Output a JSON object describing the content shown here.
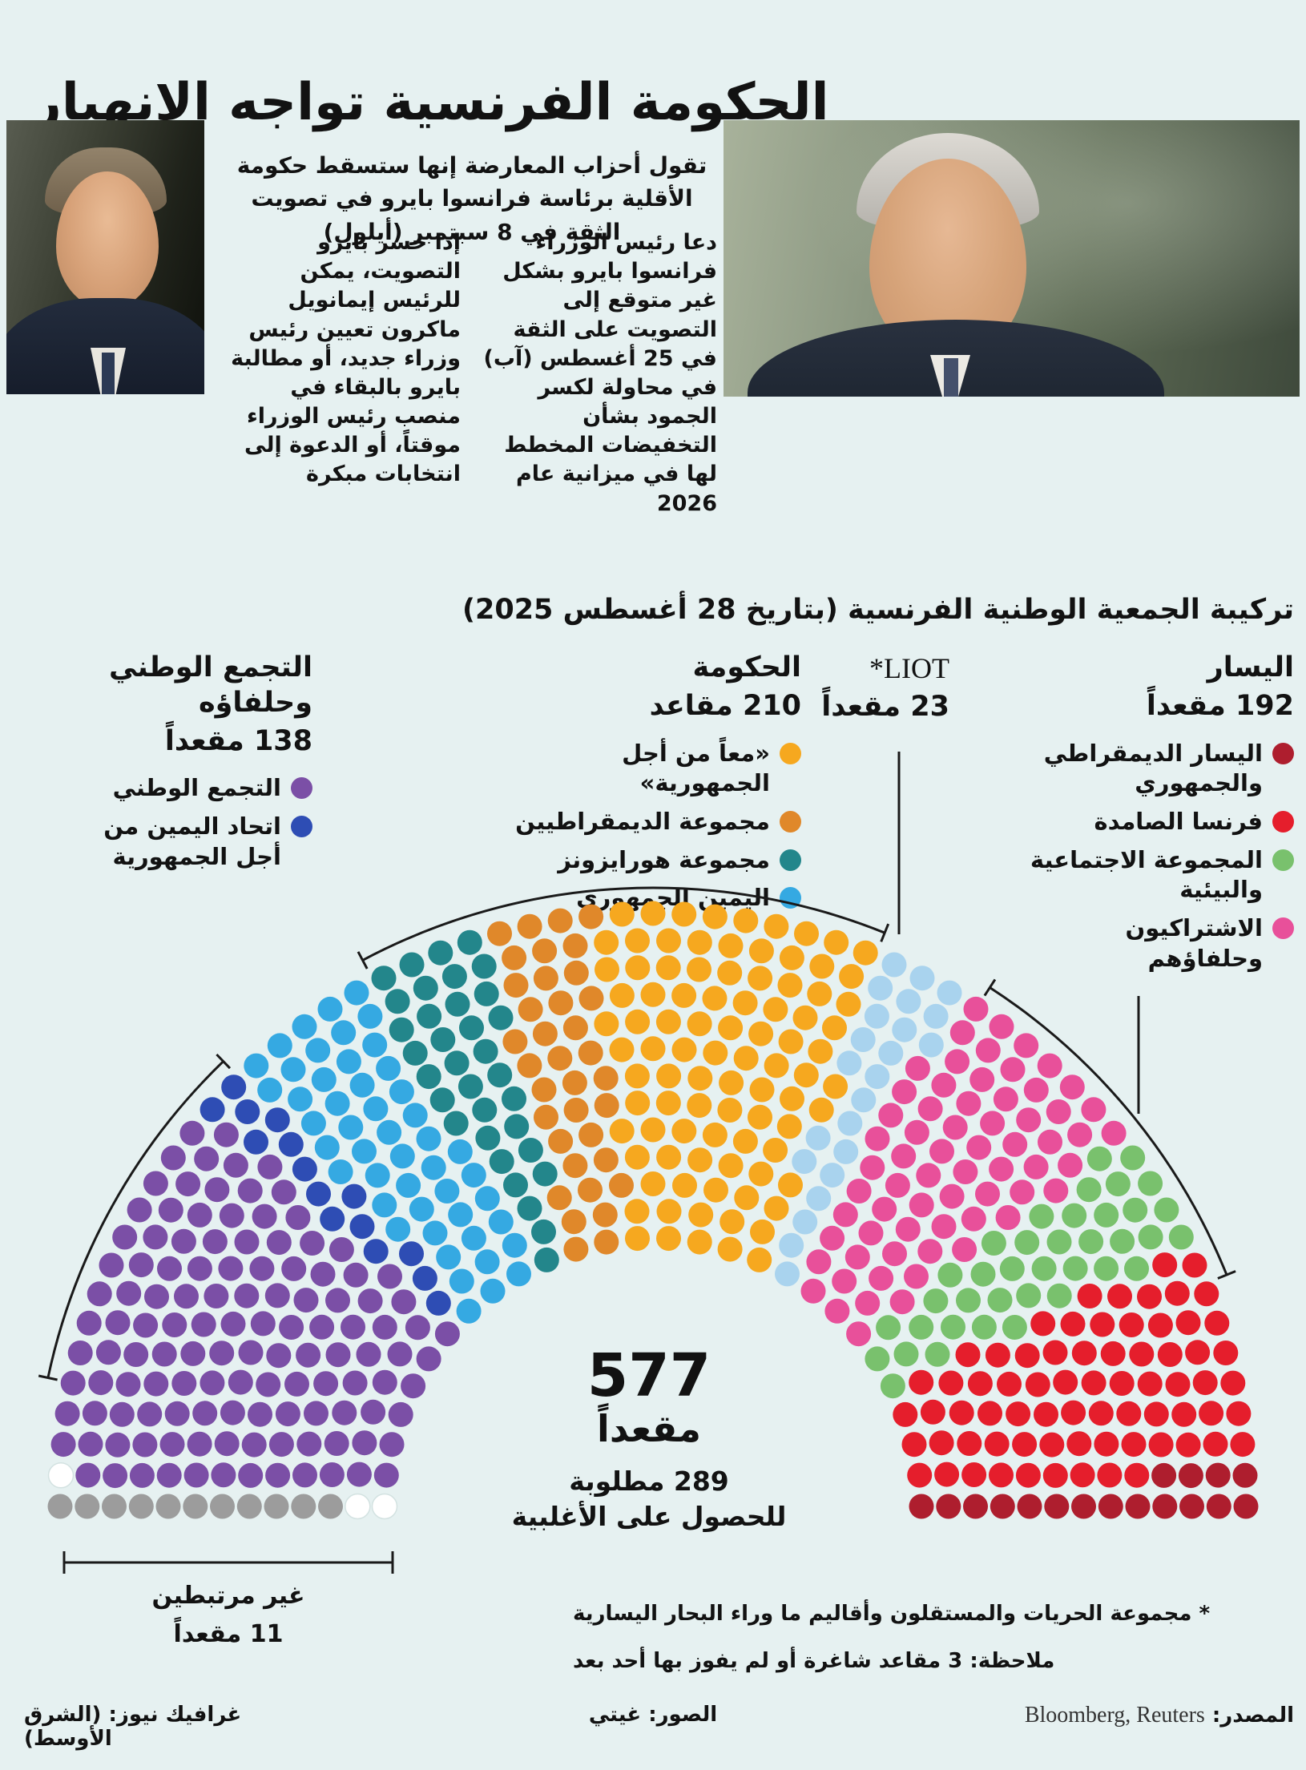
{
  "colors": {
    "background": "#e6f1f1",
    "text": "#121212",
    "line": "#1a1a1a"
  },
  "title": "الحكومة الفرنسية تواجه الانهيار",
  "intro": "تقول أحزاب المعارضة إنها ستسقط حكومة الأقلية برئاسة فرانسوا بايرو في تصويت الثقة في 8 سبتمبر (أيلول)",
  "paragraphs": {
    "bayrou_call": "دعا رئيس الوزراء فرانسوا بايرو بشكل غير متوقع إلى التصويت على الثقة في 25 أغسطس (آب) في محاولة لكسر الجمود بشأن التخفيضات المخطط لها في ميزانية عام 2026",
    "if_lose": "إذا خسر بايرو التصويت، يمكن للرئيس إيمانويل ماكرون تعيين رئيس وزراء جديد، أو مطالبة بايرو بالبقاء في منصب رئيس الوزراء موقتاً، أو الدعوة إلى انتخابات مبكرة"
  },
  "section_title": "تركيبة الجمعية الوطنية الفرنسية (بتاريخ 28 أغسطس 2025)",
  "legend": {
    "left_bloc": {
      "title": "اليسار",
      "count": "192 مقعداً",
      "items": [
        {
          "label": "اليسار الديمقراطي والجمهوري",
          "color": "#ae1e2e"
        },
        {
          "label": "فرنسا الصامدة",
          "color": "#e51e2c"
        },
        {
          "label": "المجموعة الاجتماعية والبيئية",
          "color": "#79c16d"
        },
        {
          "label": "الاشتراكيون وحلفاؤهم",
          "color": "#e8509a"
        }
      ]
    },
    "liot": {
      "title": "*LIOT",
      "count": "23 مقعداً"
    },
    "government": {
      "title": "الحكومة",
      "count": "210 مقاعد",
      "items": [
        {
          "label": "«معاً من أجل الجمهورية»",
          "color": "#f6a81f"
        },
        {
          "label": "مجموعة الديمقراطيين",
          "color": "#e0882a"
        },
        {
          "label": "مجموعة هورايزونز",
          "color": "#23868b"
        },
        {
          "label": "اليمين الجمهوري",
          "color": "#35a9e2"
        }
      ]
    },
    "rn_bloc": {
      "title": "التجمع الوطني وحلفاؤه",
      "count": "138 مقعداً",
      "items": [
        {
          "label": "التجمع الوطني",
          "color": "#7b4fa6"
        },
        {
          "label": "اتحاد اليمين من أجل الجمهورية",
          "color": "#2e4db4"
        }
      ]
    }
  },
  "center": {
    "total": "577",
    "unit": "مقعداً",
    "majority_line1": "289 مطلوبة",
    "majority_line2": "للحصول على الأغلبية"
  },
  "non_attached": {
    "line1": "غير مرتبطين",
    "line2": "11 مقعداً"
  },
  "footnotes": {
    "liot_note": "* مجموعة الحريات والمستقلون وأقاليم ما وراء البحار اليسارية",
    "vacant_note": "ملاحظة: 3 مقاعد شاغرة أو لم يفوز بها أحد بعد"
  },
  "footer": {
    "credit": "غرافيك نيوز: (الشرق الأوسط)",
    "photos": "الصور: غيتي",
    "source_label": "المصدر:",
    "source_value": "Bloomberg, Reuters"
  },
  "chart_data": {
    "type": "parliament-hemicycle",
    "title": "تركيبة الجمعية الوطنية الفرنسية (بتاريخ 28 أغسطس 2025)",
    "total_seats": 577,
    "majority_needed": 289,
    "vacant_seats": 3,
    "rows": 13,
    "blocs": [
      {
        "name": "اليسار",
        "seats": 192
      },
      {
        "name": "LIOT",
        "seats": 23
      },
      {
        "name": "الحكومة",
        "seats": 210
      },
      {
        "name": "التجمع الوطني وحلفاؤه",
        "seats": 138
      },
      {
        "name": "غير مرتبطين",
        "seats": 11
      },
      {
        "name": "شاغرة",
        "seats": 3
      }
    ],
    "groups": [
      {
        "name": "غير مرتبطين",
        "color": "#9c9c9c",
        "seats": 11
      },
      {
        "name": "مقاعد شاغرة",
        "color": "#ffffff",
        "seats": 3
      },
      {
        "name": "التجمع الوطني",
        "color": "#7b4fa6",
        "seats": 123
      },
      {
        "name": "اتحاد اليمين من أجل الجمهورية",
        "color": "#2e4db4",
        "seats": 15
      },
      {
        "name": "اليمين الجمهوري",
        "color": "#35a9e2",
        "seats": 49
      },
      {
        "name": "مجموعة هورايزونز",
        "color": "#23868b",
        "seats": 34
      },
      {
        "name": "مجموعة الديمقراطيين",
        "color": "#e0882a",
        "seats": 36
      },
      {
        "name": "«معاً من أجل الجمهورية»",
        "color": "#f6a81f",
        "seats": 91
      },
      {
        "name": "LIOT",
        "color": "#a9d3ee",
        "seats": 23
      },
      {
        "name": "الاشتراكيون وحلفاؤهم",
        "color": "#e8509a",
        "seats": 66
      },
      {
        "name": "المجموعة الاجتماعية والبيئية",
        "color": "#79c16d",
        "seats": 38
      },
      {
        "name": "فرنسا الصامدة",
        "color": "#e51e2c",
        "seats": 71
      },
      {
        "name": "اليسار الديمقراطي والجمهوري",
        "color": "#ae1e2e",
        "seats": 17
      }
    ]
  }
}
